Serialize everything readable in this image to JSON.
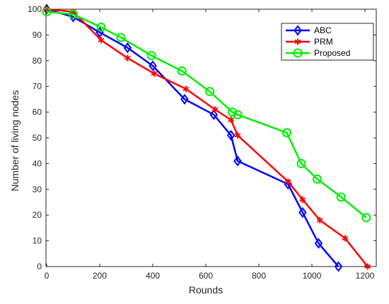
{
  "chart_data": {
    "type": "line",
    "title": "",
    "xlabel": "Rounds",
    "ylabel": "Number of living nodes",
    "xlim": [
      0,
      1250
    ],
    "ylim": [
      0,
      100
    ],
    "xticks": [
      0,
      200,
      400,
      600,
      800,
      1000,
      1200
    ],
    "yticks": [
      0,
      10,
      20,
      30,
      40,
      50,
      60,
      70,
      80,
      90,
      100
    ],
    "grid": false,
    "legend_position": "top-right",
    "series": [
      {
        "name": "ABC",
        "color": "#0000ff",
        "marker": "diamond",
        "x": [
          0,
          100,
          200,
          305,
          400,
          520,
          630,
          695,
          720,
          910,
          965,
          1025,
          1100
        ],
        "y": [
          100,
          97,
          91,
          85,
          78,
          65,
          59,
          51,
          41,
          32,
          21,
          9,
          0
        ]
      },
      {
        "name": "PRM",
        "color": "#ff0000",
        "marker": "asterisk",
        "x": [
          0,
          100,
          205,
          305,
          405,
          525,
          635,
          695,
          720,
          910,
          965,
          1030,
          1125,
          1210
        ],
        "y": [
          100,
          99,
          88,
          81,
          75,
          69,
          61,
          57,
          51,
          33,
          26,
          18,
          11,
          0
        ]
      },
      {
        "name": "Proposed",
        "color": "#00ee00",
        "marker": "circle",
        "x": [
          0,
          100,
          205,
          280,
          395,
          510,
          615,
          700,
          720,
          905,
          960,
          1020,
          1110,
          1205
        ],
        "y": [
          99,
          98,
          93,
          89,
          82,
          76,
          68,
          60,
          59,
          52,
          40,
          34,
          27,
          19
        ]
      }
    ]
  }
}
